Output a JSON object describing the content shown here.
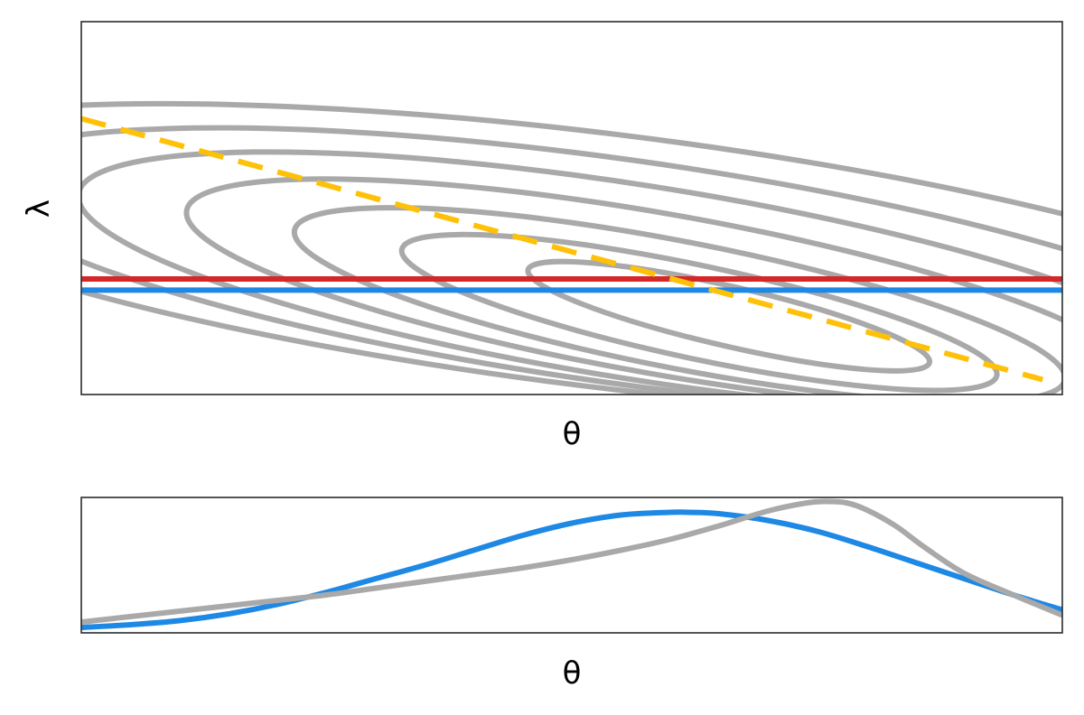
{
  "chart_data": [
    {
      "type": "line",
      "panel": "top",
      "xlabel": "θ",
      "ylabel": "λ",
      "xlim": [
        0,
        1
      ],
      "ylim": [
        0,
        1
      ],
      "grid": false,
      "legend": "none",
      "contours": {
        "color": "#a9a9a9",
        "levels": [
          {
            "center": [
              0.66,
              0.21
            ],
            "semi_axis_theta": 0.21,
            "semi_axis_lambda": 0.08,
            "tilt_deg": -13
          },
          {
            "center": [
              0.63,
              0.22
            ],
            "semi_axis_theta": 0.31,
            "semi_axis_lambda": 0.125,
            "tilt_deg": -12
          },
          {
            "center": [
              0.61,
              0.24
            ],
            "semi_axis_theta": 0.4,
            "semi_axis_lambda": 0.17,
            "tilt_deg": -11
          },
          {
            "center": [
              0.59,
              0.27
            ],
            "semi_axis_theta": 0.49,
            "semi_axis_lambda": 0.215,
            "tilt_deg": -10
          },
          {
            "center": [
              0.57,
              0.3
            ],
            "semi_axis_theta": 0.58,
            "semi_axis_lambda": 0.26,
            "tilt_deg": -9
          },
          {
            "center": [
              0.55,
              0.33
            ],
            "semi_axis_theta": 0.67,
            "semi_axis_lambda": 0.3,
            "tilt_deg": -8
          },
          {
            "center": [
              0.53,
              0.36
            ],
            "semi_axis_theta": 0.78,
            "semi_axis_lambda": 0.34,
            "tilt_deg": -7
          }
        ]
      },
      "series": [
        {
          "style": "solid",
          "color": "#d62728",
          "x": [
            0,
            1
          ],
          "y": [
            0.31,
            0.31
          ]
        },
        {
          "style": "solid",
          "color": "#1e88e5",
          "x": [
            0,
            1
          ],
          "y": [
            0.28,
            0.28
          ]
        },
        {
          "style": "dashed",
          "color": "#ffc107",
          "x": [
            0,
            0.98
          ],
          "y": [
            0.74,
            0.04
          ]
        }
      ]
    },
    {
      "type": "line",
      "panel": "bottom",
      "xlabel": "θ",
      "xlim": [
        0,
        1
      ],
      "ylim": [
        0,
        1
      ],
      "grid": false,
      "legend": "none",
      "series": [
        {
          "style": "solid",
          "color": "#1e88e5",
          "x": [
            0,
            0.05,
            0.1,
            0.15,
            0.2,
            0.25,
            0.3,
            0.35,
            0.4,
            0.45,
            0.5,
            0.55,
            0.6,
            0.62,
            0.65,
            0.7,
            0.75,
            0.8,
            0.85,
            0.9,
            0.95,
            1.0
          ],
          "y": [
            0.04,
            0.06,
            0.09,
            0.14,
            0.21,
            0.3,
            0.4,
            0.5,
            0.61,
            0.72,
            0.81,
            0.87,
            0.89,
            0.89,
            0.88,
            0.83,
            0.75,
            0.64,
            0.52,
            0.4,
            0.28,
            0.17
          ]
        },
        {
          "style": "solid",
          "color": "#a9a9a9",
          "x": [
            0,
            0.05,
            0.1,
            0.15,
            0.2,
            0.25,
            0.3,
            0.35,
            0.4,
            0.45,
            0.5,
            0.55,
            0.6,
            0.65,
            0.7,
            0.74,
            0.76,
            0.78,
            0.8,
            0.83,
            0.86,
            0.9,
            0.95,
            1.0
          ],
          "y": [
            0.08,
            0.12,
            0.16,
            0.2,
            0.24,
            0.28,
            0.33,
            0.38,
            0.43,
            0.48,
            0.54,
            0.61,
            0.69,
            0.79,
            0.9,
            0.96,
            0.97,
            0.96,
            0.91,
            0.79,
            0.63,
            0.44,
            0.28,
            0.13
          ]
        }
      ]
    }
  ]
}
